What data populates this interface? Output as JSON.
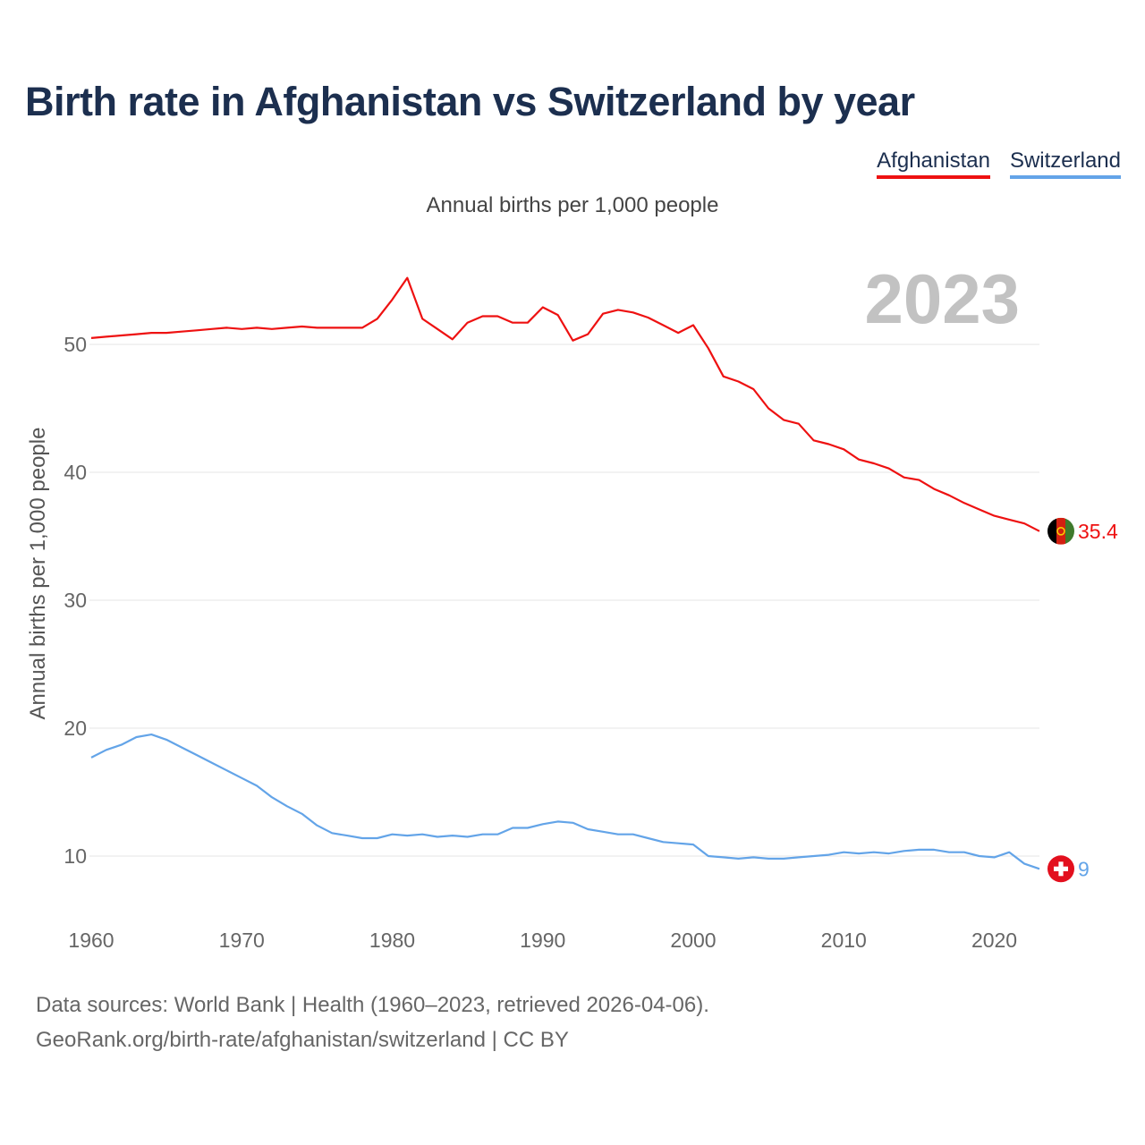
{
  "title": "Birth rate in Afghanistan vs Switzerland by year",
  "subtitle": "Annual births per 1,000 people",
  "footer": {
    "line1": "Data sources: World Bank | Health (1960–2023, retrieved 2026-04-06).",
    "line2": "GeoRank.org/birth-rate/afghanistan/switzerland | CC BY"
  },
  "colors": {
    "afghanistan": "#ee1111",
    "switzerland": "#63a4e8",
    "year_watermark": "#c2c2c2",
    "grid": "#e6e6e6",
    "tick": "#666666"
  },
  "chart_data": {
    "type": "line",
    "title": "Birth rate in Afghanistan vs Switzerland by year",
    "ylabel": "Annual births per 1,000 people",
    "xlabel": "",
    "year_label": "2023",
    "xlim": [
      1960,
      2023
    ],
    "ylim": [
      5,
      55
    ],
    "x_ticks": [
      "1960",
      "1970",
      "1980",
      "1990",
      "2000",
      "2010",
      "2020"
    ],
    "y_ticks": [
      "10",
      "20",
      "30",
      "40",
      "50"
    ],
    "grid": true,
    "legend_position": "top-right",
    "x": [
      1960,
      1961,
      1962,
      1963,
      1964,
      1965,
      1966,
      1967,
      1968,
      1969,
      1970,
      1971,
      1972,
      1973,
      1974,
      1975,
      1976,
      1977,
      1978,
      1979,
      1980,
      1981,
      1982,
      1983,
      1984,
      1985,
      1986,
      1987,
      1988,
      1989,
      1990,
      1991,
      1992,
      1993,
      1994,
      1995,
      1996,
      1997,
      1998,
      1999,
      2000,
      2001,
      2002,
      2003,
      2004,
      2005,
      2006,
      2007,
      2008,
      2009,
      2010,
      2011,
      2012,
      2013,
      2014,
      2015,
      2016,
      2017,
      2018,
      2019,
      2020,
      2021,
      2022,
      2023
    ],
    "series": [
      {
        "name": "Afghanistan",
        "color": "#ee1111",
        "end_label": "35.4",
        "values": [
          50.5,
          50.6,
          50.7,
          50.8,
          50.9,
          50.9,
          51.0,
          51.1,
          51.2,
          51.3,
          51.2,
          51.3,
          51.2,
          51.3,
          51.4,
          51.3,
          51.3,
          51.3,
          51.3,
          52.0,
          53.5,
          55.2,
          52.0,
          51.2,
          50.4,
          51.7,
          52.2,
          52.2,
          51.7,
          51.7,
          52.9,
          52.3,
          50.3,
          50.8,
          52.4,
          52.7,
          52.5,
          52.1,
          51.5,
          50.9,
          51.5,
          49.7,
          47.5,
          47.1,
          46.5,
          45.0,
          44.1,
          43.8,
          42.5,
          42.2,
          41.8,
          41.0,
          40.7,
          40.3,
          39.6,
          39.4,
          38.7,
          38.2,
          37.6,
          37.1,
          36.6,
          36.3,
          36.0,
          35.4
        ]
      },
      {
        "name": "Switzerland",
        "color": "#63a4e8",
        "end_label": "9",
        "values": [
          17.7,
          18.3,
          18.7,
          19.3,
          19.5,
          19.1,
          18.5,
          17.9,
          17.3,
          16.7,
          16.1,
          15.5,
          14.6,
          13.9,
          13.3,
          12.4,
          11.8,
          11.6,
          11.4,
          11.4,
          11.7,
          11.6,
          11.7,
          11.5,
          11.6,
          11.5,
          11.7,
          11.7,
          12.2,
          12.2,
          12.5,
          12.7,
          12.6,
          12.1,
          11.9,
          11.7,
          11.7,
          11.4,
          11.1,
          11.0,
          10.9,
          10.0,
          9.9,
          9.8,
          9.9,
          9.8,
          9.8,
          9.9,
          10.0,
          10.1,
          10.3,
          10.2,
          10.3,
          10.2,
          10.4,
          10.5,
          10.5,
          10.3,
          10.3,
          10.0,
          9.9,
          10.3,
          9.4,
          9.0
        ]
      }
    ]
  }
}
